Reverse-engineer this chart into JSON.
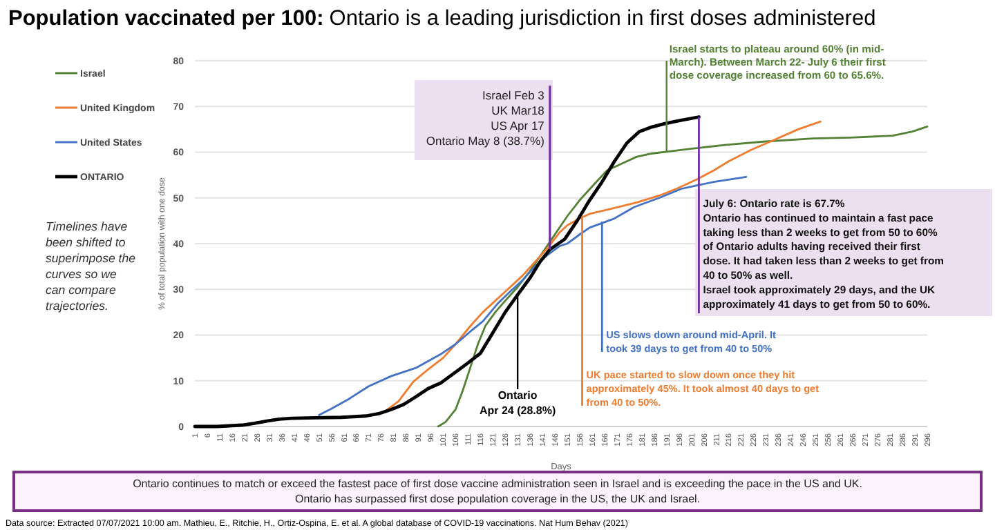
{
  "chart_data": {
    "type": "line",
    "title": "Population vaccinated per 100:",
    "subtitle": "Ontario is a leading jurisdiction in first doses administered",
    "xlabel": "Days",
    "ylabel": "% of total population with one dose",
    "xlim": [
      1,
      296
    ],
    "xticks": [
      1,
      6,
      11,
      16,
      21,
      26,
      31,
      36,
      41,
      46,
      51,
      56,
      61,
      66,
      71,
      76,
      81,
      86,
      91,
      96,
      101,
      106,
      111,
      116,
      121,
      126,
      131,
      136,
      141,
      146,
      151,
      156,
      161,
      166,
      171,
      176,
      181,
      186,
      191,
      196,
      201,
      206,
      211,
      216,
      221,
      226,
      231,
      236,
      241,
      246,
      251,
      256,
      261,
      266,
      271,
      276,
      281,
      286,
      291,
      296
    ],
    "ylim": [
      0,
      80
    ],
    "yticks": [
      0,
      10,
      20,
      30,
      40,
      50,
      60,
      70,
      80
    ],
    "grid": "y",
    "legend": "left",
    "marker": "none",
    "line_style": "solid",
    "series": [
      {
        "name": "Israel",
        "color": "#548235",
        "x": [
          99,
          102,
          106,
          109,
          112,
          115,
          118,
          122,
          126,
          131,
          136,
          141,
          146,
          151,
          156,
          161,
          167,
          173,
          179,
          185,
          191,
          200,
          215,
          230,
          250,
          265,
          282,
          290,
          296
        ],
        "values": [
          0,
          1,
          3.7,
          8,
          13,
          18,
          22,
          25,
          27.5,
          30.5,
          34,
          38,
          42,
          46,
          49.5,
          52.5,
          56,
          57.5,
          59,
          59.7,
          60.1,
          60.7,
          61.6,
          62.3,
          63,
          63.2,
          63.6,
          64.5,
          65.6
        ]
      },
      {
        "name": "United Kingdom",
        "color": "#ed7d31",
        "x": [
          78,
          83,
          89,
          95,
          101,
          106,
          112,
          117,
          123,
          128,
          133,
          138,
          143,
          148,
          151,
          156,
          160,
          170,
          179,
          188,
          195,
          203,
          210,
          216,
          225,
          234,
          244,
          253
        ],
        "values": [
          3.5,
          5.5,
          9.8,
          12.5,
          15,
          18,
          22,
          25,
          28,
          30.5,
          33,
          36,
          39,
          42.5,
          44,
          45.5,
          46.5,
          47.8,
          49,
          50.5,
          52,
          54,
          56,
          58,
          60.5,
          62.6,
          65,
          66.7
        ]
      },
      {
        "name": "United States",
        "color": "#4472c4",
        "x": [
          51,
          56,
          63,
          71,
          80,
          90,
          100,
          106,
          112,
          117,
          123,
          128,
          133,
          138,
          143,
          148,
          151,
          156,
          160,
          170,
          178,
          188,
          197,
          210,
          223
        ],
        "values": [
          2.5,
          3.9,
          6,
          8.8,
          11,
          12.8,
          15.8,
          18,
          20.8,
          23,
          26.9,
          29.5,
          32,
          35,
          37.5,
          39.5,
          40,
          42,
          43.5,
          45.5,
          48,
          50,
          52,
          53.5,
          54.6
        ]
      },
      {
        "name": "ONTARIO",
        "color": "#000000",
        "x": [
          1,
          10,
          20,
          25,
          30,
          35,
          40,
          50,
          60,
          70,
          75,
          80,
          85,
          90,
          95,
          100,
          105,
          110,
          116,
          121,
          126,
          131,
          136,
          140,
          144,
          150,
          155,
          160,
          165,
          170,
          175,
          180,
          185,
          190,
          196,
          204
        ],
        "values": [
          0,
          0,
          0.3,
          0.7,
          1.2,
          1.6,
          1.8,
          1.9,
          2,
          2.3,
          2.8,
          3.7,
          4.8,
          6.5,
          8.3,
          9.5,
          11.5,
          13.5,
          16,
          20.5,
          25,
          28.8,
          32.5,
          36,
          38.7,
          41,
          45,
          49.5,
          53.5,
          58,
          62,
          64.5,
          65.5,
          66.2,
          66.9,
          67.7
        ]
      }
    ],
    "annotations": [
      {
        "text": "Israel Feb 3\nUK Mar18\nUS Apr 17\nOntario May 8 (38.7%)",
        "x": 144,
        "y": 38.7
      },
      {
        "text": "Israel starts to plateau around 60% (in mid-\nMarch). Between March 22- July 6 their first\ndose coverage increased from 60 to 65.6%.",
        "x": 191,
        "y": 60.1
      },
      {
        "text": "July 6: Ontario rate is  67.7%\nOntario has continued to maintain a fast pace\ntaking less than 2 weeks to get from 50 to 60%\nof Ontario adults having received their first\ndose. It had taken less than 2 weeks to get from\n40 to 50% as well.\nIsrael took approximately 29 days, and the UK\napproximately 41 days to get from 50 to 60%.",
        "x": 204,
        "y": 67.7
      },
      {
        "text": "US slows down around mid-April. It\ntook 39 days to get from 40 to 50%",
        "x": 165,
        "y": 44.8
      },
      {
        "text": "UK pace started to slow down once they hit\napproximately 45%. It took almost 40 days to get\nfrom 40 to 50%.",
        "x": 157,
        "y": 46
      },
      {
        "text": "Ontario\nApr 24 (28.8%)",
        "x": 131,
        "y": 28.8
      },
      "Timelines have\nbeen shifted to\nsuperimpose the\ncurves so we\ncan compare\ntrajectories.",
      "Ontario continues to match or exceed the fastest pace of first dose vaccine administration seen in Israel and is exceeding the pace in the US and UK.\nOntario has surpassed first dose population coverage in the US, the UK and Israel.",
      "Data source: Extracted 07/07/2021 10:00 am. Mathieu, E., Ritchie, H., Ortiz-Ospina, E. et al. A global database of COVID-19 vaccinations. Nat Hum Behav (2021)"
    ]
  }
}
